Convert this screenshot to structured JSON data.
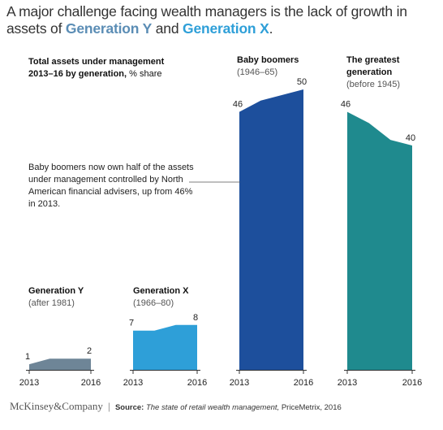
{
  "title": {
    "prefix": "A major challenge facing wealth managers is the lack of growth in assets of ",
    "gen_y": "Generation Y",
    "middle": " and ",
    "gen_x": "Generation X",
    "suffix": "."
  },
  "subtitle": {
    "bold": "Total assets under management 2013–16 by generation,",
    "rest": " % share"
  },
  "annotation": "Baby boomers now own half of the assets under management controlled by North American financial advisers, up from 46% in 2013.",
  "footer": {
    "logo": "McKinsey&Company",
    "separator": "|",
    "source_label": "Source:",
    "source_italic": "The state of retail wealth management,",
    "source_rest": " PriceMetrix, 2016"
  },
  "colors": {
    "gen_y": "#6e8597",
    "gen_x": "#2e9fd8",
    "boomers": "#1d4f9c",
    "greatest": "#1f8a8e",
    "axis": "#333333"
  },
  "chart_data": {
    "type": "area",
    "x": [
      2013,
      2014,
      2015,
      2016
    ],
    "x_tick_labels": [
      "2013",
      "2016"
    ],
    "ylim": [
      0,
      50
    ],
    "ylabel": "% share",
    "series": [
      {
        "name": "Generation Y",
        "years_label": "(after 1981)",
        "values": [
          1,
          2,
          2,
          2
        ],
        "start_label": "1",
        "end_label": "2",
        "color": "#6e8597"
      },
      {
        "name": "Generation X",
        "years_label": "(1966–80)",
        "values": [
          7,
          7,
          8,
          8
        ],
        "start_label": "7",
        "end_label": "8",
        "color": "#2e9fd8"
      },
      {
        "name": "Baby boomers",
        "years_label": "(1946–65)",
        "values": [
          46,
          48,
          49,
          50
        ],
        "start_label": "46",
        "end_label": "50",
        "color": "#1d4f9c"
      },
      {
        "name": "The greatest generation",
        "years_label": "(before 1945)",
        "values": [
          46,
          44,
          41,
          40
        ],
        "start_label": "46",
        "end_label": "40",
        "color": "#1f8a8e"
      }
    ]
  }
}
